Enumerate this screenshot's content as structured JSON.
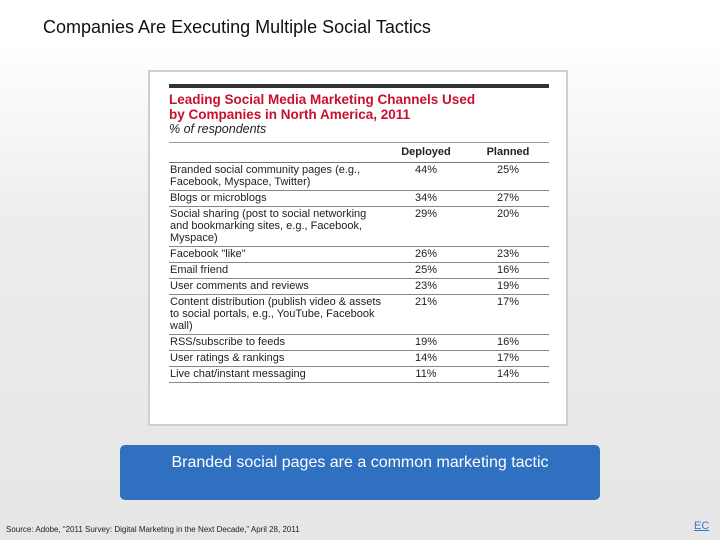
{
  "slide": {
    "title": "Companies Are Executing Multiple Social Tactics",
    "callout": "Branded social pages are a common marketing tactic",
    "source": "Source: Adobe, “2011 Survey: Digital Marketing in the Next Decade,” April 28, 2011",
    "page_number": "EC"
  },
  "table": {
    "heading_line1": "Leading Social Media Marketing Channels Used",
    "heading_line2": "by Companies in North America, 2011",
    "subheading": "% of respondents",
    "columns": [
      "",
      "Deployed",
      "Planned"
    ],
    "rows": [
      {
        "label": "Branded social community pages (e.g., Facebook, Myspace, Twitter)",
        "deployed": "44%",
        "planned": "25%"
      },
      {
        "label": "Blogs or microblogs",
        "deployed": "34%",
        "planned": "27%"
      },
      {
        "label": "Social sharing (post to social networking and bookmarking sites, e.g., Facebook, Myspace)",
        "deployed": "29%",
        "planned": "20%"
      },
      {
        "label": "Facebook \"like\"",
        "deployed": "26%",
        "planned": "23%"
      },
      {
        "label": "Email friend",
        "deployed": "25%",
        "planned": "16%"
      },
      {
        "label": "User comments and reviews",
        "deployed": "23%",
        "planned": "19%"
      },
      {
        "label": "Content distribution (publish video & assets to social portals, e.g., YouTube, Facebook wall)",
        "deployed": "21%",
        "planned": "17%"
      },
      {
        "label": "RSS/subscribe to feeds",
        "deployed": "19%",
        "planned": "16%"
      },
      {
        "label": "User ratings & rankings",
        "deployed": "14%",
        "planned": "17%"
      },
      {
        "label": "Live chat/instant messaging",
        "deployed": "11%",
        "planned": "14%"
      }
    ]
  },
  "colors": {
    "heading": "#c8102e",
    "callout_background": "#2f70c0"
  }
}
